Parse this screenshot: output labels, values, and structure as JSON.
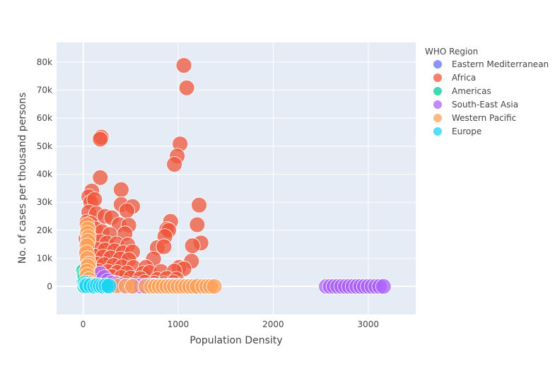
{
  "chart_data": {
    "type": "scatter",
    "title": "",
    "xlabel": "Population Density",
    "ylabel": "No. of cases per thousand persons",
    "xlim": [
      -280,
      3500
    ],
    "ylim": [
      -10000,
      87000
    ],
    "x_ticks": [
      0,
      1000,
      2000,
      3000
    ],
    "x_tick_labels": [
      "0",
      "1000",
      "2000",
      "3000"
    ],
    "y_ticks": [
      0,
      10000,
      20000,
      30000,
      40000,
      50000,
      60000,
      70000,
      80000
    ],
    "y_tick_labels": [
      "0",
      "10k",
      "20k",
      "30k",
      "40k",
      "50k",
      "60k",
      "70k",
      "80k"
    ],
    "grid": true,
    "legend_title": "WHO Region",
    "legend_position": "right",
    "series": [
      {
        "name": "Eastern Mediterranean",
        "color": "#636efa",
        "points": [
          [
            30,
            500
          ],
          [
            60,
            1200
          ],
          [
            90,
            300
          ],
          [
            120,
            2500
          ],
          [
            160,
            800
          ],
          [
            200,
            4000
          ],
          [
            250,
            1500
          ],
          [
            300,
            600
          ],
          [
            350,
            2000
          ],
          [
            400,
            900
          ],
          [
            450,
            300
          ],
          [
            520,
            1000
          ],
          [
            600,
            400
          ],
          [
            700,
            200
          ],
          [
            800,
            500
          ],
          [
            900,
            300
          ],
          [
            1000,
            600
          ],
          [
            1100,
            200
          ],
          [
            1200,
            300
          ],
          [
            1300,
            150
          ]
        ]
      },
      {
        "name": "Africa",
        "color": "#ef553b",
        "points": [
          [
            1060,
            78800
          ],
          [
            1090,
            70800
          ],
          [
            190,
            53200
          ],
          [
            180,
            52500
          ],
          [
            1020,
            50800
          ],
          [
            990,
            46500
          ],
          [
            960,
            43500
          ],
          [
            180,
            38800
          ],
          [
            90,
            34000
          ],
          [
            400,
            34500
          ],
          [
            60,
            32000
          ],
          [
            80,
            30000
          ],
          [
            120,
            31000
          ],
          [
            1220,
            29000
          ],
          [
            400,
            29200
          ],
          [
            520,
            28500
          ],
          [
            460,
            27000
          ],
          [
            60,
            26500
          ],
          [
            140,
            26000
          ],
          [
            230,
            25000
          ],
          [
            300,
            24500
          ],
          [
            920,
            23200
          ],
          [
            40,
            23000
          ],
          [
            80,
            22500
          ],
          [
            380,
            22000
          ],
          [
            480,
            21800
          ],
          [
            1200,
            22000
          ],
          [
            880,
            20400
          ],
          [
            900,
            20000
          ],
          [
            130,
            20500
          ],
          [
            200,
            19500
          ],
          [
            280,
            18500
          ],
          [
            440,
            18800
          ],
          [
            860,
            17800
          ],
          [
            30,
            17000
          ],
          [
            100,
            16500
          ],
          [
            180,
            16000
          ],
          [
            250,
            15500
          ],
          [
            350,
            15200
          ],
          [
            470,
            14800
          ],
          [
            1240,
            15500
          ],
          [
            1150,
            14500
          ],
          [
            60,
            14000
          ],
          [
            150,
            13200
          ],
          [
            230,
            13000
          ],
          [
            330,
            12700
          ],
          [
            420,
            12000
          ],
          [
            520,
            12300
          ],
          [
            780,
            13800
          ],
          [
            850,
            14200
          ],
          [
            40,
            11500
          ],
          [
            120,
            10800
          ],
          [
            210,
            10500
          ],
          [
            290,
            10200
          ],
          [
            390,
            9800
          ],
          [
            480,
            9500
          ],
          [
            740,
            9800
          ],
          [
            1140,
            9000
          ],
          [
            50,
            8500
          ],
          [
            140,
            8000
          ],
          [
            220,
            7800
          ],
          [
            320,
            7500
          ],
          [
            410,
            7000
          ],
          [
            530,
            6800
          ],
          [
            660,
            6800
          ],
          [
            1010,
            6800
          ],
          [
            1060,
            6300
          ],
          [
            70,
            6000
          ],
          [
            160,
            5500
          ],
          [
            260,
            5300
          ],
          [
            360,
            5000
          ],
          [
            460,
            4800
          ],
          [
            630,
            4700
          ],
          [
            700,
            5000
          ],
          [
            820,
            5300
          ],
          [
            960,
            5500
          ],
          [
            30,
            4500
          ],
          [
            110,
            4000
          ],
          [
            200,
            3700
          ],
          [
            300,
            3500
          ],
          [
            400,
            3200
          ],
          [
            500,
            3000
          ],
          [
            600,
            2800
          ],
          [
            780,
            2500
          ],
          [
            880,
            2900
          ],
          [
            980,
            2600
          ],
          [
            50,
            2200
          ],
          [
            140,
            1800
          ],
          [
            240,
            1500
          ],
          [
            340,
            1200
          ],
          [
            440,
            1000
          ],
          [
            550,
            900
          ],
          [
            650,
            1500
          ],
          [
            750,
            1200
          ],
          [
            850,
            1000
          ],
          [
            950,
            1400
          ]
        ]
      },
      {
        "name": "Americas",
        "color": "#00cc96",
        "points": [
          [
            5,
            5500
          ],
          [
            10,
            4200
          ],
          [
            15,
            3500
          ],
          [
            20,
            2600
          ],
          [
            25,
            1800
          ],
          [
            8,
            1200
          ],
          [
            30,
            900
          ],
          [
            40,
            500
          ],
          [
            12,
            300
          ],
          [
            18,
            100
          ],
          [
            35,
            2200
          ],
          [
            22,
            3000
          ]
        ]
      },
      {
        "name": "South-East Asia",
        "color": "#ab63fa",
        "points": [
          [
            180,
            4500
          ],
          [
            220,
            3200
          ],
          [
            260,
            2000
          ],
          [
            300,
            1200
          ],
          [
            350,
            800
          ],
          [
            400,
            400
          ],
          [
            450,
            200
          ],
          [
            500,
            100
          ],
          [
            550,
            300
          ],
          [
            600,
            150
          ],
          [
            650,
            200
          ],
          [
            700,
            300
          ],
          [
            750,
            250
          ],
          [
            800,
            150
          ],
          [
            850,
            200
          ],
          [
            900,
            250
          ],
          [
            950,
            300
          ],
          [
            1000,
            200
          ],
          [
            1050,
            150
          ],
          [
            1100,
            100
          ],
          [
            2560,
            0
          ],
          [
            2600,
            0
          ],
          [
            2640,
            0
          ],
          [
            2680,
            0
          ],
          [
            2720,
            0
          ],
          [
            2760,
            0
          ],
          [
            2800,
            0
          ],
          [
            2840,
            0
          ],
          [
            2880,
            0
          ],
          [
            2920,
            0
          ],
          [
            2960,
            0
          ],
          [
            3000,
            0
          ],
          [
            3040,
            0
          ],
          [
            3080,
            0
          ],
          [
            3120,
            0
          ],
          [
            3160,
            0
          ]
        ]
      },
      {
        "name": "Western Pacific",
        "color": "#ffa15a",
        "points": [
          [
            40,
            22000
          ],
          [
            50,
            20500
          ],
          [
            45,
            19000
          ],
          [
            55,
            17500
          ],
          [
            50,
            16200
          ],
          [
            40,
            14500
          ],
          [
            35,
            12000
          ],
          [
            45,
            10000
          ],
          [
            60,
            8000
          ],
          [
            50,
            7200
          ],
          [
            40,
            5500
          ],
          [
            45,
            4000
          ],
          [
            60,
            2500
          ],
          [
            70,
            1200
          ],
          [
            100,
            600
          ],
          [
            150,
            300
          ],
          [
            250,
            200
          ],
          [
            350,
            150
          ],
          [
            450,
            100
          ],
          [
            520,
            0
          ],
          [
            660,
            0
          ],
          [
            720,
            0
          ],
          [
            760,
            0
          ],
          [
            800,
            0
          ],
          [
            840,
            0
          ],
          [
            880,
            0
          ],
          [
            920,
            0
          ],
          [
            960,
            0
          ],
          [
            1000,
            0
          ],
          [
            1040,
            0
          ],
          [
            1080,
            0
          ],
          [
            1120,
            0
          ],
          [
            1160,
            0
          ],
          [
            1200,
            0
          ],
          [
            1260,
            0
          ],
          [
            1300,
            0
          ],
          [
            1340,
            0
          ],
          [
            1380,
            0
          ]
        ]
      },
      {
        "name": "Europe",
        "color": "#19d3f3",
        "points": [
          [
            20,
            1200
          ],
          [
            30,
            500
          ],
          [
            40,
            200
          ],
          [
            80,
            300
          ],
          [
            120,
            100
          ],
          [
            150,
            400
          ],
          [
            180,
            200
          ],
          [
            210,
            100
          ],
          [
            240,
            300
          ],
          [
            270,
            150
          ]
        ]
      }
    ]
  }
}
